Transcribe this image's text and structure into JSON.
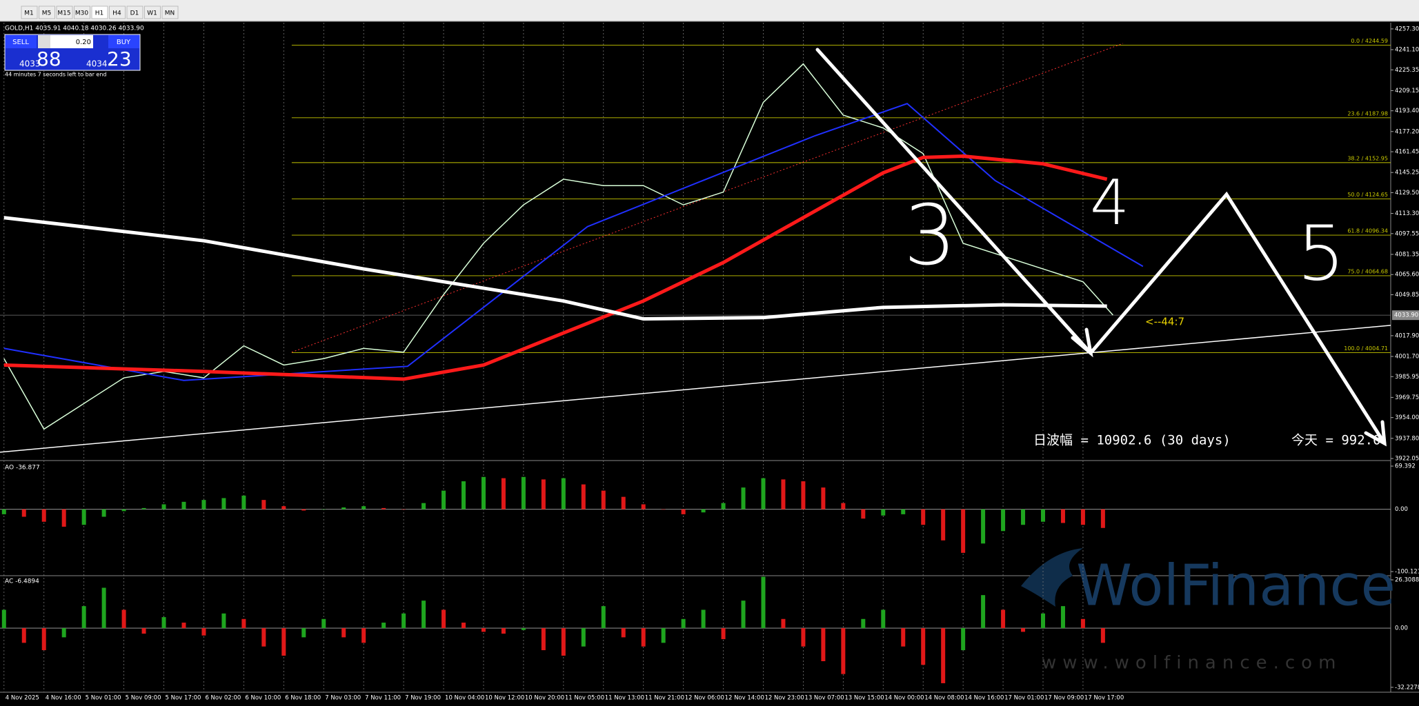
{
  "toolbar": {
    "timeframes": [
      "M1",
      "M5",
      "M15",
      "M30",
      "H1",
      "H4",
      "D1",
      "W1",
      "MN"
    ]
  },
  "header": {
    "symbol_line": "GOLD,H1  4035.91 4040.18 4030.26 4033.90"
  },
  "trade_panel": {
    "sell": "SELL",
    "lot": "0.20",
    "buy": "BUY",
    "bid_small": "4033",
    "bid_big": "88",
    "ask_small": "4034",
    "ask_big": "23",
    "timer": "44 minutes 7 seconds left to bar end"
  },
  "price_chart": {
    "xlim": [
      -0.1,
      34.7
    ],
    "ylim": [
      3921,
      4262.1
    ],
    "yticks": [
      {
        "value": 4257.3,
        "label": "4257.30"
      },
      {
        "value": 4241.1,
        "label": "4241.10"
      },
      {
        "value": 4225.35,
        "label": "4225.35"
      },
      {
        "value": 4209.15,
        "label": "4209.15"
      },
      {
        "value": 4193.4,
        "label": "4193.40"
      },
      {
        "value": 4177.2,
        "label": "4177.20"
      },
      {
        "value": 4161.45,
        "label": "4161.45"
      },
      {
        "value": 4145.25,
        "label": "4145.25"
      },
      {
        "value": 4129.5,
        "label": "4129.50"
      },
      {
        "value": 4113.3,
        "label": "4113.30"
      },
      {
        "value": 4097.55,
        "label": "4097.55"
      },
      {
        "value": 4081.35,
        "label": "4081.35"
      },
      {
        "value": 4065.6,
        "label": "4065.60"
      },
      {
        "value": 4049.85,
        "label": "4049.85"
      },
      {
        "value": 4017.9,
        "label": "4017.90"
      },
      {
        "value": 4001.7,
        "label": "4001.70"
      },
      {
        "value": 3985.95,
        "label": "3985.95"
      },
      {
        "value": 3969.75,
        "label": "3969.75"
      },
      {
        "value": 3954,
        "label": "3954.00"
      },
      {
        "value": 3937.8,
        "label": "3937.80"
      },
      {
        "value": 3922.05,
        "label": "3922.05"
      }
    ],
    "current_price": {
      "value": 4033.9,
      "label": "4033.90"
    },
    "xticks": [
      {
        "value": 0,
        "label": "4 Nov 2025"
      },
      {
        "value": 1,
        "label": "4 Nov 16:00"
      },
      {
        "value": 2,
        "label": "5 Nov 01:00"
      },
      {
        "value": 3,
        "label": "5 Nov 09:00"
      },
      {
        "value": 4,
        "label": "5 Nov 17:00"
      },
      {
        "value": 5,
        "label": "6 Nov 02:00"
      },
      {
        "value": 6,
        "label": "6 Nov 10:00"
      },
      {
        "value": 7,
        "label": "6 Nov 18:00"
      },
      {
        "value": 8,
        "label": "7 Nov 03:00"
      },
      {
        "value": 9,
        "label": "7 Nov 11:00"
      },
      {
        "value": 10,
        "label": "7 Nov 19:00"
      },
      {
        "value": 11,
        "label": "10 Nov 04:00"
      },
      {
        "value": 12,
        "label": "10 Nov 12:00"
      },
      {
        "value": 13,
        "label": "10 Nov 20:00"
      },
      {
        "value": 14,
        "label": "11 Nov 05:00"
      },
      {
        "value": 15,
        "label": "11 Nov 13:00"
      },
      {
        "value": 16,
        "label": "11 Nov 21:00"
      },
      {
        "value": 17,
        "label": "12 Nov 06:00"
      },
      {
        "value": 18,
        "label": "12 Nov 14:00"
      },
      {
        "value": 19,
        "label": "12 Nov 23:00"
      },
      {
        "value": 20,
        "label": "13 Nov 07:00"
      },
      {
        "value": 21,
        "label": "13 Nov 15:00"
      },
      {
        "value": 22,
        "label": "14 Nov 00:00"
      },
      {
        "value": 23,
        "label": "14 Nov 08:00"
      },
      {
        "value": 24,
        "label": "14 Nov 16:00"
      },
      {
        "value": 25,
        "label": "17 Nov 01:00"
      },
      {
        "value": 26,
        "label": "17 Nov 09:00"
      },
      {
        "value": 27,
        "label": "17 Nov 17:00"
      }
    ],
    "series": [
      {
        "color": "#d9ffd9",
        "width": 1.5,
        "x": [
          0,
          1,
          2,
          3,
          4,
          5,
          6,
          7,
          8,
          9,
          10,
          11,
          12,
          13,
          14,
          15,
          16,
          17,
          18,
          19,
          20,
          21,
          22,
          23,
          24,
          25,
          26,
          27,
          27.75
        ],
        "values": [
          4000,
          3945,
          3965,
          3985,
          3990,
          3985,
          4010,
          3995,
          4000,
          4008,
          4005,
          4050,
          4090,
          4120,
          4140,
          4135,
          4135,
          4120,
          4130,
          4200,
          4230,
          4190,
          4180,
          4160,
          4090,
          4080,
          4070,
          4060,
          4034
        ]
      },
      {
        "color": "#2030ff",
        "width": 2,
        "x": [
          0,
          4.5,
          10.1,
          14.6,
          20.3,
          22.6,
          24.8,
          28.5
        ],
        "values": [
          4008,
          3983,
          3994,
          4103,
          4174,
          4199,
          4139,
          4072
        ]
      },
      {
        "color": "#ff1a1a",
        "width": 5,
        "x": [
          0,
          5,
          10,
          12,
          14,
          16,
          18,
          20,
          22,
          23,
          24,
          26,
          27.6
        ],
        "values": [
          3995,
          3990,
          3984,
          3995,
          4020,
          4045,
          4075,
          4110,
          4145,
          4157,
          4158,
          4152,
          4140
        ]
      },
      {
        "color": "#ffffff",
        "width": 5,
        "x": [
          0,
          5,
          9,
          14,
          16,
          19,
          22,
          25,
          27.6
        ],
        "values": [
          4110,
          4092,
          4070,
          4045,
          4031,
          4032,
          4040,
          4042,
          4041
        ]
      }
    ],
    "trendline": {
      "color": "#ffffff",
      "x": [
        -0.1,
        34.7
      ],
      "values": [
        3927,
        4026
      ]
    },
    "forecast_line": {
      "color": "#ff3030",
      "x": [
        7.2,
        28
      ],
      "values": [
        4005,
        4246
      ]
    },
    "fibonacci": {
      "color": "#c8c800",
      "x_start": 7.2,
      "levels": [
        {
          "value": 4244.59,
          "label": "0.0 / 4244.59"
        },
        {
          "value": 4187.98,
          "label": "23.6 / 4187.98"
        },
        {
          "value": 4152.95,
          "label": "38.2 / 4152.95"
        },
        {
          "value": 4124.65,
          "label": "50.0 / 4124.65"
        },
        {
          "value": 4096.34,
          "label": "61.8 / 4096.34"
        },
        {
          "value": 4064.68,
          "label": "75.0 / 4064.68"
        },
        {
          "value": 4004.71,
          "label": "100.0 / 4004.71"
        }
      ]
    },
    "annotations": {
      "timer_arrow": "<--44:7",
      "daily_range": "日波幅 = 10902.6  (30 days)",
      "today": "今天 = 992.0",
      "wave_3": "3",
      "wave_4": "4",
      "wave_5": "5"
    }
  },
  "ao": {
    "label": "AO -36.877",
    "ylim": [
      -104.5,
      77.2
    ],
    "yticks": [
      69.392,
      {
        "value": 0,
        "label": "0.00"
      },
      -100.121
    ],
    "up_color": "#1fa51f",
    "down_color": "#e01818",
    "x": [
      0,
      0.5,
      1,
      1.5,
      2,
      2.5,
      3,
      3.5,
      4,
      4.5,
      5,
      5.5,
      6,
      6.5,
      7,
      7.5,
      8,
      8.5,
      9,
      9.5,
      10,
      10.5,
      11,
      11.5,
      12,
      12.5,
      13,
      13.5,
      14,
      14.5,
      15,
      15.5,
      16,
      16.5,
      17,
      17.5,
      18,
      18.5,
      19,
      19.5,
      20,
      20.5,
      21,
      21.5,
      22,
      22.5,
      23,
      23.5,
      24,
      24.5,
      25,
      25.5,
      26,
      26.5,
      27,
      27.5
    ],
    "values": [
      -8,
      -12,
      -20,
      -28,
      -25,
      -12,
      -3,
      2,
      8,
      12,
      15,
      18,
      22,
      15,
      5,
      -2,
      0,
      3,
      5,
      2,
      0,
      10,
      30,
      45,
      52,
      50,
      52,
      48,
      50,
      40,
      30,
      20,
      8,
      0,
      -8,
      -5,
      10,
      35,
      50,
      48,
      45,
      35,
      10,
      -15,
      -10,
      -8,
      -25,
      -50,
      -70,
      -55,
      -35,
      -25,
      -20,
      -22,
      -25,
      -30
    ]
  },
  "ac": {
    "label": "AC -6.4894",
    "ylim": [
      -34.9,
      28.2
    ],
    "yticks": [
      26.3088,
      {
        "value": 0,
        "label": "0.00"
      },
      -32.2278
    ],
    "up_color": "#1fa51f",
    "down_color": "#e01818",
    "x": [
      0,
      0.5,
      1,
      1.5,
      2,
      2.5,
      3,
      3.5,
      4,
      4.5,
      5,
      5.5,
      6,
      6.5,
      7,
      7.5,
      8,
      8.5,
      9,
      9.5,
      10,
      10.5,
      11,
      11.5,
      12,
      12.5,
      13,
      13.5,
      14,
      14.5,
      15,
      15.5,
      16,
      16.5,
      17,
      17.5,
      18,
      18.5,
      19,
      19.5,
      20,
      20.5,
      21,
      21.5,
      22,
      22.5,
      23,
      23.5,
      24,
      24.5,
      25,
      25.5,
      26,
      26.5,
      27,
      27.5
    ],
    "values": [
      10,
      -8,
      -12,
      -5,
      12,
      22,
      10,
      -3,
      6,
      3,
      -4,
      8,
      5,
      -10,
      -15,
      -5,
      5,
      -5,
      -8,
      3,
      8,
      15,
      10,
      3,
      -2,
      -3,
      -1,
      -12,
      -15,
      -10,
      12,
      -5,
      -10,
      -8,
      5,
      10,
      -6,
      15,
      28,
      5,
      -10,
      -18,
      -25,
      5,
      10,
      -10,
      -20,
      -30,
      -12,
      18,
      10,
      -2,
      8,
      12,
      5,
      -8
    ]
  },
  "watermark": {
    "brand": "WolFinance",
    "url": "www.wolfinance.com"
  }
}
